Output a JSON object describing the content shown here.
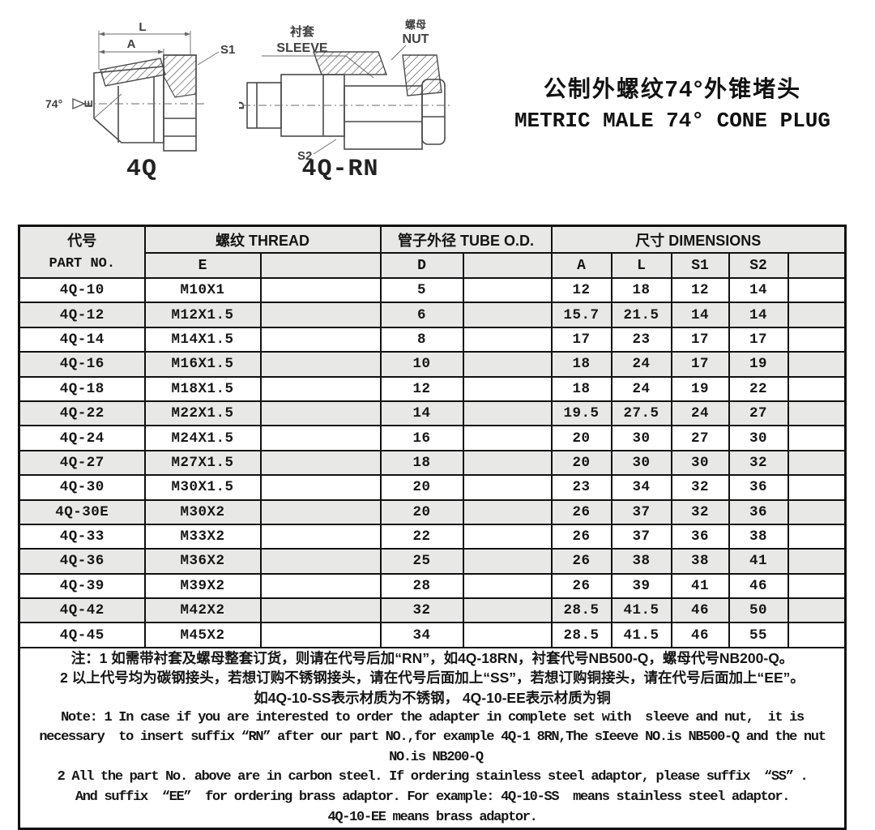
{
  "figures": {
    "left": {
      "caption": "4Q",
      "labels": {
        "l": "L",
        "a": "A",
        "s1": "S1",
        "angle": "74°",
        "e": "E"
      }
    },
    "right": {
      "caption": "4Q-RN",
      "labels": {
        "sleeve_cn": "衬套",
        "sleeve_en": "SLEEVE",
        "nut_cn": "螺母",
        "nut_en": "NUT",
        "d": "D",
        "s2": "S2"
      }
    }
  },
  "title": {
    "cn": "公制外螺纹74°外锥堵头",
    "en": "METRIC MALE 74° CONE PLUG"
  },
  "table": {
    "header": {
      "part_cn": "代号",
      "part_en": "PART NO.",
      "thread": "螺纹 THREAD",
      "tube_od": "管子外径 TUBE O.D.",
      "dimensions": "尺寸  DIMENSIONS",
      "e": "E",
      "d": "D",
      "a": "A",
      "l": "L",
      "s1": "S1",
      "s2": "S2"
    },
    "rows": [
      {
        "part": "4Q-10",
        "e": "M10X1",
        "d": "5",
        "a": "12",
        "l": "18",
        "s1": "12",
        "s2": "14"
      },
      {
        "part": "4Q-12",
        "e": "M12X1.5",
        "d": "6",
        "a": "15.7",
        "l": "21.5",
        "s1": "14",
        "s2": "14"
      },
      {
        "part": "4Q-14",
        "e": "M14X1.5",
        "d": "8",
        "a": "17",
        "l": "23",
        "s1": "17",
        "s2": "17"
      },
      {
        "part": "4Q-16",
        "e": "M16X1.5",
        "d": "10",
        "a": "18",
        "l": "24",
        "s1": "17",
        "s2": "19"
      },
      {
        "part": "4Q-18",
        "e": "M18X1.5",
        "d": "12",
        "a": "18",
        "l": "24",
        "s1": "19",
        "s2": "22"
      },
      {
        "part": "4Q-22",
        "e": "M22X1.5",
        "d": "14",
        "a": "19.5",
        "l": "27.5",
        "s1": "24",
        "s2": "27"
      },
      {
        "part": "4Q-24",
        "e": "M24X1.5",
        "d": "16",
        "a": "20",
        "l": "30",
        "s1": "27",
        "s2": "30"
      },
      {
        "part": "4Q-27",
        "e": "M27X1.5",
        "d": "18",
        "a": "20",
        "l": "30",
        "s1": "30",
        "s2": "32"
      },
      {
        "part": "4Q-30",
        "e": "M30X1.5",
        "d": "20",
        "a": "23",
        "l": "34",
        "s1": "32",
        "s2": "36"
      },
      {
        "part": "4Q-30E",
        "e": "M30X2",
        "d": "20",
        "a": "26",
        "l": "37",
        "s1": "32",
        "s2": "36"
      },
      {
        "part": "4Q-33",
        "e": "M33X2",
        "d": "22",
        "a": "26",
        "l": "37",
        "s1": "36",
        "s2": "38"
      },
      {
        "part": "4Q-36",
        "e": "M36X2",
        "d": "25",
        "a": "26",
        "l": "38",
        "s1": "38",
        "s2": "41"
      },
      {
        "part": "4Q-39",
        "e": "M39X2",
        "d": "28",
        "a": "26",
        "l": "39",
        "s1": "41",
        "s2": "46"
      },
      {
        "part": "4Q-42",
        "e": "M42X2",
        "d": "32",
        "a": "28.5",
        "l": "41.5",
        "s1": "46",
        "s2": "50"
      },
      {
        "part": "4Q-45",
        "e": "M45X2",
        "d": "34",
        "a": "28.5",
        "l": "41.5",
        "s1": "46",
        "s2": "55"
      }
    ]
  },
  "notes": {
    "lines_cn": [
      "注：1 如需带衬套及螺母整套订货，则请在代号后加“RN”，如4Q-18RN，衬套代号NB500-Q，螺母代号NB200-Q。",
      "2 以上代号均为碳钢接头，若想订购不锈钢接头，请在代号后面加上“SS”，若想订购铜接头，请在代号后面加上“EE”。",
      "如4Q-10-SS表示材质为不锈钢， 4Q-10-EE表示材质为铜"
    ],
    "lines_en": [
      "Note: 1 In case if you are interested to order the adapter in complete set with  sleeve and nut,  it is",
      "necessary  to insert suffix “RN” after our part NO.,for example 4Q-1 8RN,The sIeeve NO.is NB500-Q and the nut",
      " NO.is NB200-Q",
      "2 All the part No. above are in carbon steel. If ordering stainless steel adaptor, please suffix  “SS” .",
      "And suffix  “EE”  for ordering brass adaptor. For example: 4Q-10-SS  means stainless steel adaptor.",
      "4Q-10-EE means brass adaptor."
    ]
  }
}
